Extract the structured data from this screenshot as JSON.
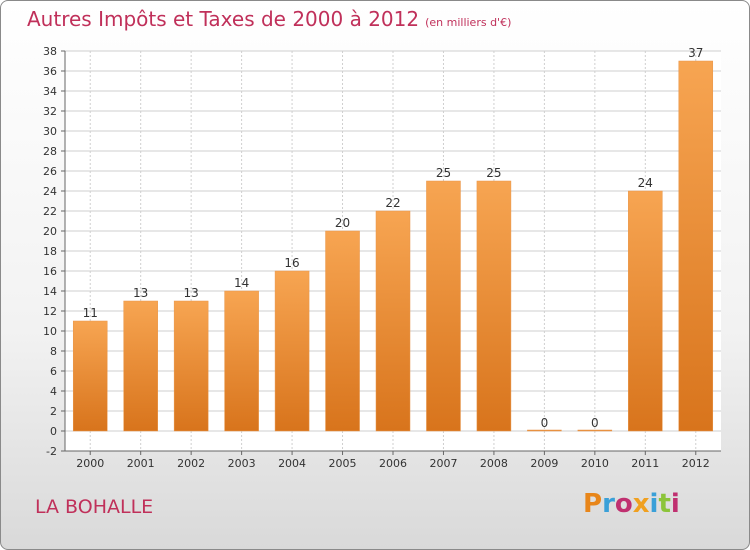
{
  "chart_data": {
    "type": "bar",
    "title": "Autres Impôts et Taxes de 2000 à 2012",
    "subtitle": "(en milliers d'€)",
    "categories": [
      "2000",
      "2001",
      "2002",
      "2003",
      "2004",
      "2005",
      "2006",
      "2007",
      "2008",
      "2009",
      "2010",
      "2011",
      "2012"
    ],
    "values": [
      11,
      13,
      13,
      14,
      16,
      20,
      22,
      25,
      25,
      0,
      0,
      24,
      37
    ],
    "ylim": [
      -2,
      38
    ],
    "yticks": [
      -2,
      0,
      2,
      4,
      6,
      8,
      10,
      12,
      14,
      16,
      18,
      20,
      22,
      24,
      26,
      28,
      30,
      32,
      34,
      36,
      38
    ],
    "grid": true,
    "bar_color": "#f08a30",
    "title_color": "#c0305a"
  },
  "footer": {
    "commune": "LA BOHALLE",
    "brand": "Proxiti"
  }
}
